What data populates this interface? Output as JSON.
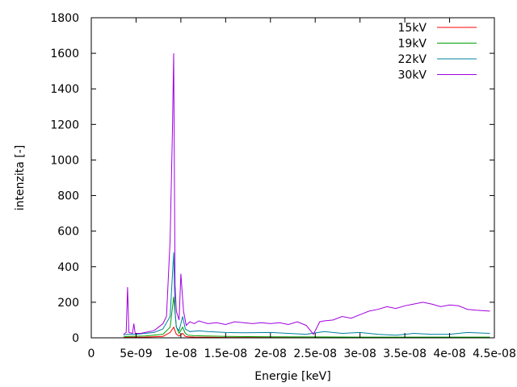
{
  "chart_data": {
    "type": "line",
    "title": "",
    "xlabel": "Energie [keV]",
    "ylabel": "intenzita [-]",
    "xlim": [
      0,
      4.5e-08
    ],
    "ylim": [
      0,
      1800
    ],
    "xticks": [
      {
        "value": 0,
        "label": "0"
      },
      {
        "value": 5e-09,
        "label": "5e-09"
      },
      {
        "value": 1e-08,
        "label": "1e-08"
      },
      {
        "value": 1.5e-08,
        "label": "1.5e-08"
      },
      {
        "value": 2e-08,
        "label": "2e-08"
      },
      {
        "value": 2.5e-08,
        "label": "2.5e-08"
      },
      {
        "value": 3e-08,
        "label": "3e-08"
      },
      {
        "value": 3.5e-08,
        "label": "3.5e-08"
      },
      {
        "value": 4e-08,
        "label": "4e-08"
      },
      {
        "value": 4.5e-08,
        "label": "4.5e-08"
      }
    ],
    "yticks": [
      {
        "value": 0,
        "label": "0"
      },
      {
        "value": 200,
        "label": "200"
      },
      {
        "value": 400,
        "label": "400"
      },
      {
        "value": 600,
        "label": "600"
      },
      {
        "value": 800,
        "label": "800"
      },
      {
        "value": 1000,
        "label": "1000"
      },
      {
        "value": 1200,
        "label": "1200"
      },
      {
        "value": 1400,
        "label": "1400"
      },
      {
        "value": 1600,
        "label": "1600"
      },
      {
        "value": 1800,
        "label": "1800"
      }
    ],
    "grid": false,
    "legend_position": "top-right",
    "series": [
      {
        "name": "15kV",
        "color": "#ff0000",
        "x": [
          3.6e-09,
          4e-09,
          6e-09,
          8e-09,
          8.8e-09,
          9.2e-09,
          9.5e-09,
          9.8e-09,
          1.02e-08,
          1.05e-08,
          1.08e-08,
          1.15e-08,
          1.3e-08,
          1.5e-08,
          2e-08,
          2.5e-08,
          3e-08,
          3.5e-08,
          4e-08,
          4.45e-08
        ],
        "y": [
          2,
          3,
          4,
          8,
          30,
          60,
          20,
          10,
          25,
          8,
          6,
          4,
          3,
          2,
          2,
          1,
          1,
          1,
          1,
          1
        ]
      },
      {
        "name": "19kV",
        "color": "#00a000",
        "x": [
          3.6e-09,
          4e-09,
          6e-09,
          8e-09,
          8.8e-09,
          9.2e-09,
          9.5e-09,
          9.8e-09,
          1.02e-08,
          1.05e-08,
          1.08e-08,
          1.15e-08,
          1.3e-08,
          1.5e-08,
          2e-08,
          2.5e-08,
          3e-08,
          3.5e-08,
          4e-08,
          4.45e-08
        ],
        "y": [
          5,
          8,
          10,
          20,
          60,
          230,
          60,
          25,
          60,
          25,
          15,
          12,
          10,
          8,
          6,
          5,
          4,
          4,
          4,
          4
        ]
      },
      {
        "name": "22kV",
        "color": "#0080a0",
        "x": [
          3.6e-09,
          4e-09,
          5e-09,
          6e-09,
          7e-09,
          8e-09,
          8.8e-09,
          9.2e-09,
          9.35e-09,
          9.5e-09,
          9.8e-09,
          1.02e-08,
          1.05e-08,
          1.1e-08,
          1.2e-08,
          1.3e-08,
          1.5e-08,
          1.7e-08,
          2e-08,
          2.2e-08,
          2.4e-08,
          2.6e-08,
          2.8e-08,
          3e-08,
          3.2e-08,
          3.4e-08,
          3.6e-08,
          3.8e-08,
          4e-08,
          4.2e-08,
          4.45e-08
        ],
        "y": [
          15,
          20,
          20,
          25,
          30,
          50,
          120,
          480,
          150,
          60,
          40,
          120,
          50,
          35,
          40,
          35,
          30,
          28,
          30,
          25,
          20,
          35,
          25,
          30,
          20,
          15,
          25,
          20,
          20,
          30,
          25
        ]
      },
      {
        "name": "30kV",
        "color": "#a000e0",
        "x": [
          3.6e-09,
          3.9e-09,
          4.05e-09,
          4.2e-09,
          4.6e-09,
          4.75e-09,
          4.9e-09,
          5.5e-09,
          6e-09,
          6.5e-09,
          7e-09,
          7.5e-09,
          8e-09,
          8.4e-09,
          8.8e-09,
          9.05e-09,
          9.2e-09,
          9.35e-09,
          9.5e-09,
          9.8e-09,
          1e-08,
          1.03e-08,
          1.06e-08,
          1.1e-08,
          1.15e-08,
          1.2e-08,
          1.3e-08,
          1.4e-08,
          1.5e-08,
          1.6e-08,
          1.7e-08,
          1.8e-08,
          1.9e-08,
          2e-08,
          2.1e-08,
          2.2e-08,
          2.3e-08,
          2.4e-08,
          2.48e-08,
          2.55e-08,
          2.6e-08,
          2.7e-08,
          2.8e-08,
          2.9e-08,
          3e-08,
          3.1e-08,
          3.2e-08,
          3.3e-08,
          3.4e-08,
          3.5e-08,
          3.6e-08,
          3.7e-08,
          3.8e-08,
          3.9e-08,
          4e-08,
          4.1e-08,
          4.2e-08,
          4.3e-08,
          4.45e-08
        ],
        "y": [
          20,
          30,
          285,
          30,
          25,
          80,
          25,
          25,
          30,
          35,
          40,
          60,
          80,
          120,
          550,
          1150,
          1600,
          300,
          150,
          100,
          360,
          150,
          70,
          90,
          80,
          95,
          80,
          85,
          75,
          90,
          85,
          80,
          85,
          80,
          85,
          75,
          90,
          70,
          20,
          90,
          95,
          100,
          120,
          110,
          130,
          150,
          160,
          175,
          165,
          180,
          190,
          200,
          190,
          175,
          185,
          180,
          160,
          155,
          150
        ]
      }
    ]
  }
}
